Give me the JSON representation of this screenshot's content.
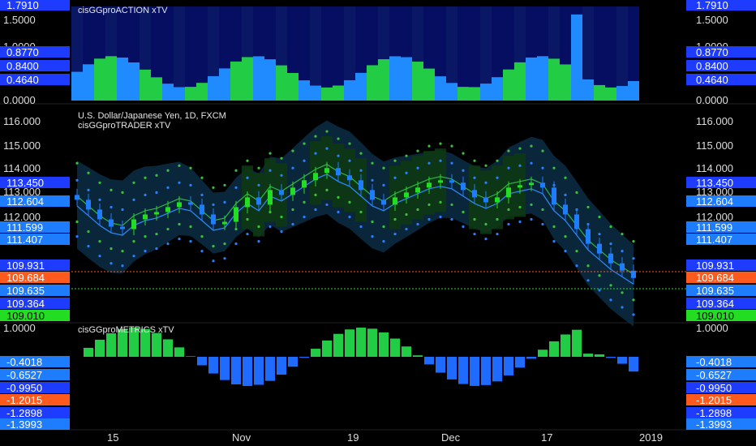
{
  "symbol_title": "U.S. Dollar/Japanese Yen, 1D, FXCM",
  "panes": {
    "action": {
      "name": "cisGGproACTION xTV",
      "ticks": [
        "1.7910",
        "1.5000",
        "1.0000",
        "0.8770",
        "0.8400",
        "0.4640",
        "0.0000"
      ],
      "badges": [
        {
          "text": "1.7910",
          "color": "#1e3cff"
        },
        {
          "text": "0.8770",
          "color": "#1e3cff"
        },
        {
          "text": "0.8400",
          "color": "#1e3cff"
        },
        {
          "text": "0.4640",
          "color": "#1e3cff"
        }
      ]
    },
    "trader": {
      "name": "cisGGproTRADER xTV",
      "ticks": [
        "116.000",
        "115.000",
        "114.000",
        "113.000",
        "112.000",
        "110.000"
      ],
      "badges": [
        {
          "text": "113.450",
          "color": "#1e3cff"
        },
        {
          "text": "112.604",
          "color": "#1e7cff"
        },
        {
          "text": "111.599",
          "color": "#1e7cff"
        },
        {
          "text": "111.407",
          "color": "#1e7cff"
        },
        {
          "text": "109.931",
          "color": "#1e3cff"
        },
        {
          "text": "109.684",
          "color": "#ff5a1e"
        },
        {
          "text": "109.635",
          "color": "#1e7cff"
        },
        {
          "text": "109.364",
          "color": "#1e3cff"
        },
        {
          "text": "109.010",
          "color": "#22dd22"
        }
      ]
    },
    "metrics": {
      "name": "cisGGproMETRICS xTV",
      "ticks": [
        "1.0000"
      ],
      "badges": [
        {
          "text": "-0.4018",
          "color": "#1e7cff"
        },
        {
          "text": "-0.6527",
          "color": "#1e7cff"
        },
        {
          "text": "-0.9950",
          "color": "#1e3cff"
        },
        {
          "text": "-1.2015",
          "color": "#ff5a1e"
        },
        {
          "text": "-1.2898",
          "color": "#1e3cff"
        },
        {
          "text": "-1.3993",
          "color": "#1e7cff"
        }
      ]
    }
  },
  "time_axis": [
    "15",
    "Nov",
    "19",
    "Dec",
    "17",
    "2019"
  ],
  "colors": {
    "bull": "#22dd22",
    "bear": "#1e7cff",
    "cloud_green": "#0e3a12",
    "cloud_blue": "#0b2a40"
  },
  "chart_data": {
    "type": "candlestick",
    "title": "U.S. Dollar/Japanese Yen, 1D, FXCM",
    "series_close": [
      112.8,
      112.4,
      112.0,
      111.7,
      111.6,
      112.0,
      112.2,
      112.3,
      112.5,
      112.7,
      112.6,
      112.2,
      111.8,
      111.9,
      112.5,
      112.9,
      112.6,
      113.2,
      113.0,
      113.3,
      113.6,
      113.9,
      114.1,
      113.8,
      113.6,
      113.2,
      112.8,
      112.6,
      112.9,
      113.1,
      113.3,
      113.5,
      113.6,
      113.5,
      113.2,
      112.9,
      112.7,
      112.9,
      113.3,
      113.4,
      113.5,
      113.3,
      112.6,
      112.2,
      111.6,
      111.0,
      110.6,
      110.2,
      109.9,
      109.6
    ],
    "ylim": [
      109.0,
      116.5
    ]
  }
}
